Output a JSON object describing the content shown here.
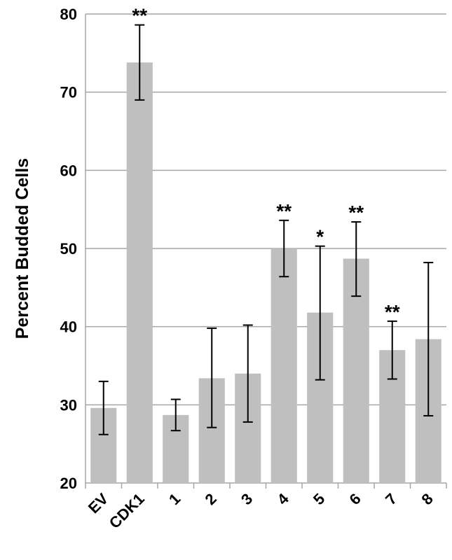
{
  "chart_data": {
    "type": "bar",
    "title": "",
    "xlabel": "",
    "ylabel": "Percent Budded Cells",
    "ylim": [
      20,
      80
    ],
    "yticks": [
      20,
      30,
      40,
      50,
      60,
      70,
      80
    ],
    "grid": "horizontal",
    "categories": [
      "EV",
      "CDK1",
      "1",
      "2",
      "3",
      "4",
      "5",
      "6",
      "7",
      "8"
    ],
    "values": [
      29.6,
      73.8,
      28.7,
      33.4,
      34.0,
      50.0,
      41.8,
      48.7,
      37.0,
      38.4
    ],
    "error_low": [
      26.2,
      69.0,
      26.7,
      27.1,
      27.8,
      46.4,
      33.2,
      43.9,
      33.3,
      28.6
    ],
    "error_high": [
      33.0,
      78.6,
      30.7,
      39.8,
      40.2,
      53.6,
      50.3,
      53.4,
      40.7,
      48.2
    ],
    "significance": [
      "",
      "**",
      "",
      "",
      "",
      "**",
      "*",
      "**",
      "**",
      ""
    ],
    "colors": {
      "bar": "#bfbfbf",
      "grid": "#a6a6a6",
      "axis": "#a6a6a6",
      "error": "#000000"
    }
  }
}
